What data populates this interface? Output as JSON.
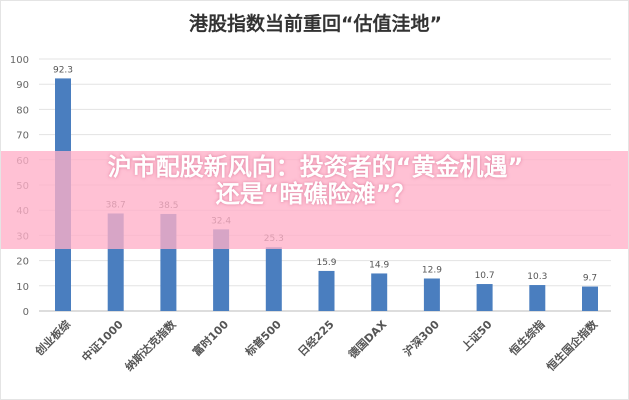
{
  "chart_data": {
    "type": "bar",
    "title": "港股指数当前重回“估值洼地”",
    "categories": [
      "创业板综",
      "中证1000",
      "纳斯达克指数",
      "富时100",
      "标普500",
      "日经225",
      "德国DAX",
      "沪深300",
      "上证50",
      "恒生综指",
      "恒生国企指数"
    ],
    "values": [
      92.3,
      38.7,
      38.5,
      32.4,
      25.3,
      15.9,
      14.9,
      12.9,
      10.7,
      10.3,
      9.7
    ],
    "ylim": [
      0,
      100
    ],
    "yticks": [
      0,
      10,
      20,
      30,
      40,
      50,
      60,
      70,
      80,
      90,
      100
    ],
    "grid": true,
    "bar_color": "#4a7ebf"
  },
  "overlay": {
    "line1": "沪市配股新风向：投资者的“黄金机遇”",
    "line2": "还是“暗礁险滩”？",
    "color": "#ffb0c8"
  }
}
